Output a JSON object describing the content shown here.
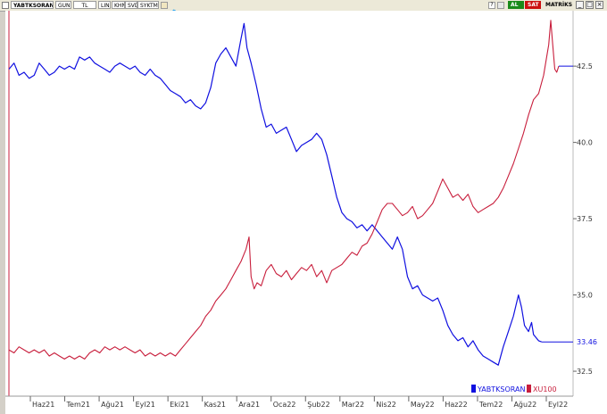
{
  "toolbar": {
    "symbol": "YABTKSORAN",
    "period": "GUN",
    "currency": "TL",
    "scale_buttons": [
      "LIN",
      "KHN",
      "SVD",
      "SYKTMP"
    ],
    "badge_al": "AL",
    "badge_sat": "SAT",
    "matrix_label": "MATRİKS",
    "colors": {
      "al": "#1a8a1a",
      "sat": "#cc1010"
    },
    "icons": [
      "lock-icon",
      "twitter-icon",
      "help-icon",
      "print-icon",
      "minimize-icon",
      "maximize-icon",
      "close-icon"
    ]
  },
  "legend": [
    {
      "name": "YABTKSORAN",
      "color": "#1010e0"
    },
    {
      "name": "XU100",
      "color": "#c81e3c"
    }
  ],
  "chart_data": {
    "type": "line",
    "x_labels": [
      "Haz21",
      "Tem21",
      "Ağu21",
      "Eyl21",
      "Eki21",
      "Kas21",
      "Ara21",
      "Oca22",
      "Şub22",
      "Mar22",
      "Nis22",
      "May22",
      "Haz22",
      "Tem22",
      "Ağu22",
      "Eyl22"
    ],
    "y_ticks": [
      32.5,
      35,
      37.5,
      40,
      42.5
    ],
    "y_range": [
      31.8,
      44.2
    ],
    "last_value": 33.46,
    "series": [
      {
        "name": "YABTKSORAN",
        "color": "#1010e0",
        "points": [
          [
            0,
            42.4
          ],
          [
            5,
            42.6
          ],
          [
            10,
            42.2
          ],
          [
            15,
            42.3
          ],
          [
            20,
            42.1
          ],
          [
            25,
            42.2
          ],
          [
            30,
            42.6
          ],
          [
            35,
            42.4
          ],
          [
            40,
            42.2
          ],
          [
            45,
            42.3
          ],
          [
            50,
            42.5
          ],
          [
            55,
            42.4
          ],
          [
            60,
            42.5
          ],
          [
            65,
            42.4
          ],
          [
            70,
            42.8
          ],
          [
            75,
            42.7
          ],
          [
            80,
            42.8
          ],
          [
            85,
            42.6
          ],
          [
            90,
            42.5
          ],
          [
            95,
            42.4
          ],
          [
            100,
            42.3
          ],
          [
            105,
            42.5
          ],
          [
            110,
            42.6
          ],
          [
            115,
            42.5
          ],
          [
            120,
            42.4
          ],
          [
            125,
            42.5
          ],
          [
            130,
            42.3
          ],
          [
            135,
            42.2
          ],
          [
            140,
            42.4
          ],
          [
            145,
            42.2
          ],
          [
            150,
            42.1
          ],
          [
            155,
            41.9
          ],
          [
            160,
            41.7
          ],
          [
            165,
            41.6
          ],
          [
            170,
            41.5
          ],
          [
            175,
            41.3
          ],
          [
            180,
            41.4
          ],
          [
            185,
            41.2
          ],
          [
            190,
            41.1
          ],
          [
            195,
            41.3
          ],
          [
            200,
            41.8
          ],
          [
            205,
            42.6
          ],
          [
            210,
            42.9
          ],
          [
            215,
            43.1
          ],
          [
            220,
            42.8
          ],
          [
            225,
            42.5
          ],
          [
            230,
            43.4
          ],
          [
            233,
            43.9
          ],
          [
            236,
            43.1
          ],
          [
            240,
            42.6
          ],
          [
            245,
            41.9
          ],
          [
            250,
            41.1
          ],
          [
            255,
            40.5
          ],
          [
            260,
            40.6
          ],
          [
            265,
            40.3
          ],
          [
            270,
            40.4
          ],
          [
            275,
            40.5
          ],
          [
            280,
            40.1
          ],
          [
            285,
            39.7
          ],
          [
            290,
            39.9
          ],
          [
            295,
            40.0
          ],
          [
            300,
            40.1
          ],
          [
            305,
            40.3
          ],
          [
            310,
            40.1
          ],
          [
            315,
            39.6
          ],
          [
            320,
            38.9
          ],
          [
            325,
            38.2
          ],
          [
            330,
            37.7
          ],
          [
            335,
            37.5
          ],
          [
            340,
            37.4
          ],
          [
            345,
            37.2
          ],
          [
            350,
            37.3
          ],
          [
            355,
            37.1
          ],
          [
            360,
            37.3
          ],
          [
            365,
            37.1
          ],
          [
            370,
            36.9
          ],
          [
            375,
            36.7
          ],
          [
            380,
            36.5
          ],
          [
            385,
            36.9
          ],
          [
            390,
            36.5
          ],
          [
            395,
            35.6
          ],
          [
            400,
            35.2
          ],
          [
            405,
            35.3
          ],
          [
            410,
            35.0
          ],
          [
            415,
            34.9
          ],
          [
            420,
            34.8
          ],
          [
            425,
            34.9
          ],
          [
            430,
            34.5
          ],
          [
            435,
            34.0
          ],
          [
            440,
            33.7
          ],
          [
            445,
            33.5
          ],
          [
            450,
            33.6
          ],
          [
            455,
            33.3
          ],
          [
            460,
            33.5
          ],
          [
            465,
            33.2
          ],
          [
            470,
            33.0
          ],
          [
            475,
            32.9
          ],
          [
            480,
            32.8
          ],
          [
            485,
            32.7
          ],
          [
            490,
            33.3
          ],
          [
            495,
            33.8
          ],
          [
            500,
            34.3
          ],
          [
            505,
            35.0
          ],
          [
            508,
            34.6
          ],
          [
            511,
            34.0
          ],
          [
            515,
            33.8
          ],
          [
            518,
            34.1
          ],
          [
            520,
            33.7
          ],
          [
            525,
            33.5
          ],
          [
            528,
            33.46
          ]
        ]
      },
      {
        "name": "XU100",
        "color": "#c81e3c",
        "points": [
          [
            0,
            33.2
          ],
          [
            5,
            33.1
          ],
          [
            10,
            33.3
          ],
          [
            15,
            33.2
          ],
          [
            20,
            33.1
          ],
          [
            25,
            33.2
          ],
          [
            30,
            33.1
          ],
          [
            35,
            33.2
          ],
          [
            40,
            33.0
          ],
          [
            45,
            33.1
          ],
          [
            50,
            33.0
          ],
          [
            55,
            32.9
          ],
          [
            60,
            33.0
          ],
          [
            65,
            32.9
          ],
          [
            70,
            33.0
          ],
          [
            75,
            32.9
          ],
          [
            80,
            33.1
          ],
          [
            85,
            33.2
          ],
          [
            90,
            33.1
          ],
          [
            95,
            33.3
          ],
          [
            100,
            33.2
          ],
          [
            105,
            33.3
          ],
          [
            110,
            33.2
          ],
          [
            115,
            33.3
          ],
          [
            120,
            33.2
          ],
          [
            125,
            33.1
          ],
          [
            130,
            33.2
          ],
          [
            135,
            33.0
          ],
          [
            140,
            33.1
          ],
          [
            145,
            33.0
          ],
          [
            150,
            33.1
          ],
          [
            155,
            33.0
          ],
          [
            160,
            33.1
          ],
          [
            165,
            33.0
          ],
          [
            170,
            33.2
          ],
          [
            175,
            33.4
          ],
          [
            180,
            33.6
          ],
          [
            185,
            33.8
          ],
          [
            190,
            34.0
          ],
          [
            195,
            34.3
          ],
          [
            200,
            34.5
          ],
          [
            205,
            34.8
          ],
          [
            210,
            35.0
          ],
          [
            215,
            35.2
          ],
          [
            220,
            35.5
          ],
          [
            225,
            35.8
          ],
          [
            230,
            36.1
          ],
          [
            235,
            36.5
          ],
          [
            238,
            36.9
          ],
          [
            240,
            35.6
          ],
          [
            243,
            35.2
          ],
          [
            246,
            35.4
          ],
          [
            250,
            35.3
          ],
          [
            255,
            35.8
          ],
          [
            260,
            36.0
          ],
          [
            265,
            35.7
          ],
          [
            270,
            35.6
          ],
          [
            275,
            35.8
          ],
          [
            280,
            35.5
          ],
          [
            285,
            35.7
          ],
          [
            290,
            35.9
          ],
          [
            295,
            35.8
          ],
          [
            300,
            36.0
          ],
          [
            305,
            35.6
          ],
          [
            310,
            35.8
          ],
          [
            315,
            35.4
          ],
          [
            320,
            35.8
          ],
          [
            325,
            35.9
          ],
          [
            330,
            36.0
          ],
          [
            335,
            36.2
          ],
          [
            340,
            36.4
          ],
          [
            345,
            36.3
          ],
          [
            350,
            36.6
          ],
          [
            355,
            36.7
          ],
          [
            360,
            37.0
          ],
          [
            365,
            37.4
          ],
          [
            370,
            37.8
          ],
          [
            375,
            38.0
          ],
          [
            380,
            38.0
          ],
          [
            385,
            37.8
          ],
          [
            390,
            37.6
          ],
          [
            395,
            37.7
          ],
          [
            400,
            37.9
          ],
          [
            405,
            37.5
          ],
          [
            410,
            37.6
          ],
          [
            415,
            37.8
          ],
          [
            420,
            38.0
          ],
          [
            425,
            38.4
          ],
          [
            430,
            38.8
          ],
          [
            435,
            38.5
          ],
          [
            440,
            38.2
          ],
          [
            445,
            38.3
          ],
          [
            450,
            38.1
          ],
          [
            455,
            38.3
          ],
          [
            460,
            37.9
          ],
          [
            465,
            37.7
          ],
          [
            470,
            37.8
          ],
          [
            475,
            37.9
          ],
          [
            480,
            38.0
          ],
          [
            485,
            38.2
          ],
          [
            490,
            38.5
          ],
          [
            495,
            38.9
          ],
          [
            500,
            39.3
          ],
          [
            505,
            39.8
          ],
          [
            510,
            40.3
          ],
          [
            515,
            40.9
          ],
          [
            520,
            41.4
          ],
          [
            525,
            41.6
          ],
          [
            530,
            42.2
          ],
          [
            533,
            42.8
          ],
          [
            535,
            43.2
          ],
          [
            537,
            44.0
          ],
          [
            539,
            43.2
          ],
          [
            541,
            42.4
          ],
          [
            543,
            42.3
          ],
          [
            545,
            42.5
          ]
        ]
      }
    ]
  }
}
